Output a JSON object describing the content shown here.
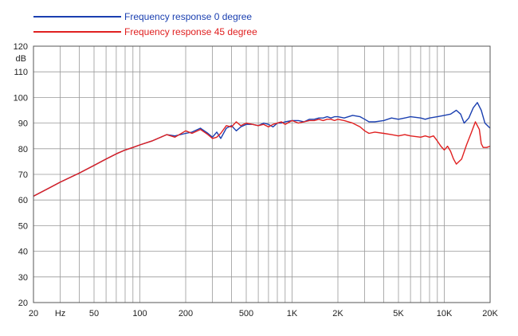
{
  "chart_data": {
    "type": "line",
    "title": "",
    "xlabel": "",
    "ylabel": "dB",
    "x_scale": "log",
    "xlim": [
      20,
      20000
    ],
    "ylim": [
      20,
      120
    ],
    "grid": true,
    "legend_position": "top-left",
    "x_tick_labels": [
      {
        "value": 20,
        "label": "20"
      },
      {
        "value": 30,
        "label": "Hz"
      },
      {
        "value": 50,
        "label": "50"
      },
      {
        "value": 100,
        "label": "100"
      },
      {
        "value": 200,
        "label": "200"
      },
      {
        "value": 500,
        "label": "500"
      },
      {
        "value": 1000,
        "label": "1K"
      },
      {
        "value": 2000,
        "label": "2K"
      },
      {
        "value": 5000,
        "label": "5K"
      },
      {
        "value": 10000,
        "label": "10K"
      },
      {
        "value": 20000,
        "label": "20K"
      }
    ],
    "x_grid_values": [
      20,
      30,
      40,
      50,
      60,
      70,
      80,
      90,
      100,
      200,
      300,
      400,
      500,
      600,
      700,
      800,
      900,
      1000,
      2000,
      3000,
      4000,
      5000,
      6000,
      7000,
      8000,
      9000,
      10000,
      20000
    ],
    "y_ticks": [
      20,
      30,
      40,
      50,
      60,
      70,
      80,
      90,
      100,
      110,
      120
    ],
    "series": [
      {
        "name": "Frequency response 0 degree",
        "color": "#1a3fb0",
        "x": [
          20,
          25,
          30,
          40,
          50,
          60,
          70,
          80,
          90,
          100,
          120,
          150,
          170,
          200,
          220,
          250,
          280,
          300,
          320,
          340,
          370,
          400,
          430,
          460,
          500,
          550,
          600,
          650,
          700,
          750,
          800,
          850,
          900,
          1000,
          1100,
          1200,
          1300,
          1400,
          1500,
          1600,
          1700,
          1800,
          1900,
          2000,
          2200,
          2500,
          2800,
          3000,
          3200,
          3500,
          4000,
          4500,
          5000,
          5500,
          6000,
          7000,
          7500,
          8000,
          9000,
          10000,
          11000,
          12000,
          12800,
          13500,
          14500,
          15500,
          16500,
          17500,
          18500,
          20000
        ],
        "y": [
          61.5,
          64.5,
          67,
          70.5,
          73.5,
          76,
          78,
          79.5,
          80.5,
          81.5,
          83,
          85.5,
          85,
          86,
          86.5,
          88,
          86,
          84.5,
          86.5,
          84,
          88,
          89,
          87,
          88.5,
          89.5,
          89.5,
          89,
          90,
          89.5,
          88.5,
          90,
          90,
          90.5,
          91,
          91,
          90.5,
          91.5,
          91.5,
          92,
          92,
          92.5,
          92,
          92.5,
          92.5,
          92,
          93,
          92.5,
          91.5,
          90.5,
          90.5,
          91,
          92,
          91.5,
          92,
          92.5,
          92,
          91.5,
          92,
          92.5,
          93,
          93.5,
          95,
          93.5,
          90,
          92,
          96,
          98,
          95,
          90,
          88
        ]
      },
      {
        "name": "Frequency response 45 degree",
        "color": "#e02020",
        "x": [
          20,
          25,
          30,
          40,
          50,
          60,
          70,
          80,
          90,
          100,
          120,
          150,
          170,
          200,
          220,
          250,
          280,
          300,
          320,
          340,
          370,
          400,
          430,
          460,
          500,
          550,
          600,
          650,
          700,
          750,
          800,
          850,
          900,
          1000,
          1100,
          1200,
          1300,
          1400,
          1500,
          1600,
          1700,
          1800,
          1900,
          2000,
          2200,
          2500,
          2800,
          3000,
          3200,
          3500,
          4000,
          4500,
          5000,
          5500,
          6000,
          7000,
          7500,
          8000,
          8500,
          9000,
          9500,
          10000,
          10500,
          11000,
          11500,
          12000,
          13000,
          14000,
          15000,
          16000,
          17000,
          17500,
          18000,
          19000,
          20000
        ],
        "y": [
          61.5,
          64.5,
          67,
          70.5,
          73.5,
          76,
          78,
          79.5,
          80.5,
          81.5,
          83,
          85.5,
          84.5,
          87,
          86,
          87.5,
          85.5,
          84,
          84.5,
          86,
          89,
          88.5,
          90.5,
          89,
          90,
          89.5,
          89,
          89.5,
          88.5,
          89.5,
          90,
          90.5,
          89.5,
          91,
          90,
          90.5,
          91,
          91,
          91.5,
          91,
          91.5,
          91.5,
          91,
          91.5,
          91,
          90,
          88.5,
          87,
          86,
          86.5,
          86,
          85.5,
          85,
          85.5,
          85,
          84.5,
          85,
          84.5,
          85,
          83,
          81,
          79.5,
          81,
          79,
          76,
          74,
          76,
          81.5,
          86,
          90.5,
          87.5,
          82,
          80.5,
          80.5,
          81
        ]
      }
    ]
  }
}
